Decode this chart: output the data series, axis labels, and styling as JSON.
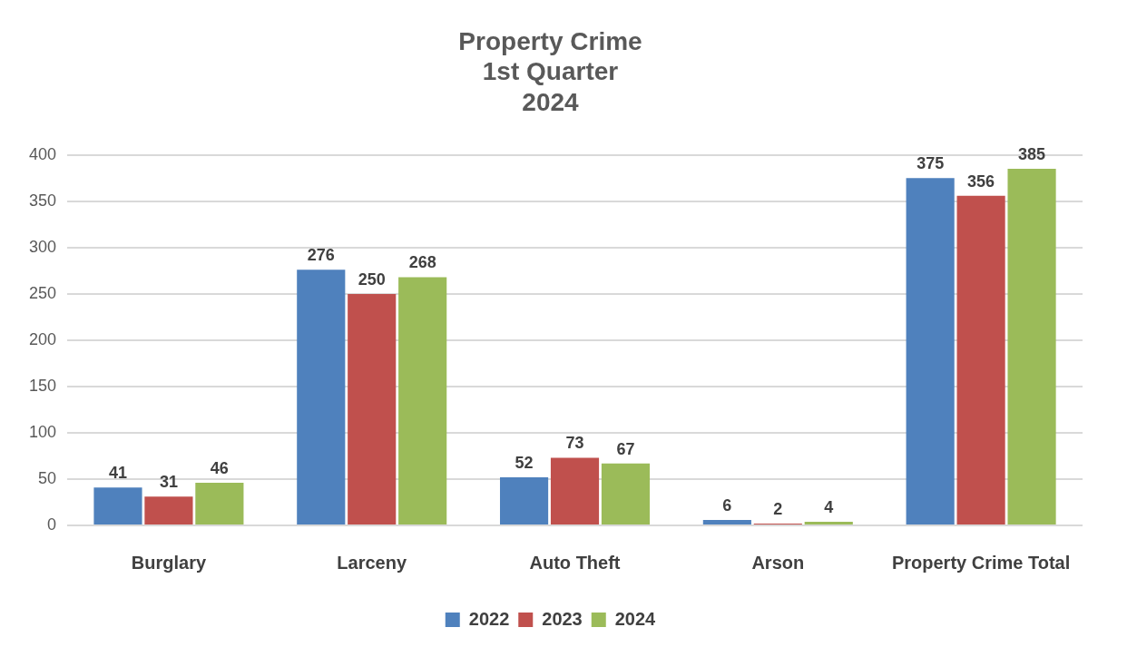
{
  "chart_data": {
    "type": "bar",
    "title": "Property Crime\n1st Quarter\n2024",
    "categories": [
      "Burglary",
      "Larceny",
      "Auto Theft",
      "Arson",
      "Property Crime Total"
    ],
    "series": [
      {
        "name": "2022",
        "color": "#4f81bd",
        "values": [
          41,
          276,
          52,
          6,
          375
        ]
      },
      {
        "name": "2023",
        "color": "#c0504d",
        "values": [
          31,
          250,
          73,
          2,
          356
        ]
      },
      {
        "name": "2024",
        "color": "#9bbb59",
        "values": [
          46,
          268,
          67,
          4,
          385
        ]
      }
    ],
    "ylim": [
      0,
      400
    ],
    "yticks": [
      0,
      50,
      100,
      150,
      200,
      250,
      300,
      350,
      400
    ],
    "grid": "y",
    "legend": "bottom",
    "data_labels": true
  }
}
